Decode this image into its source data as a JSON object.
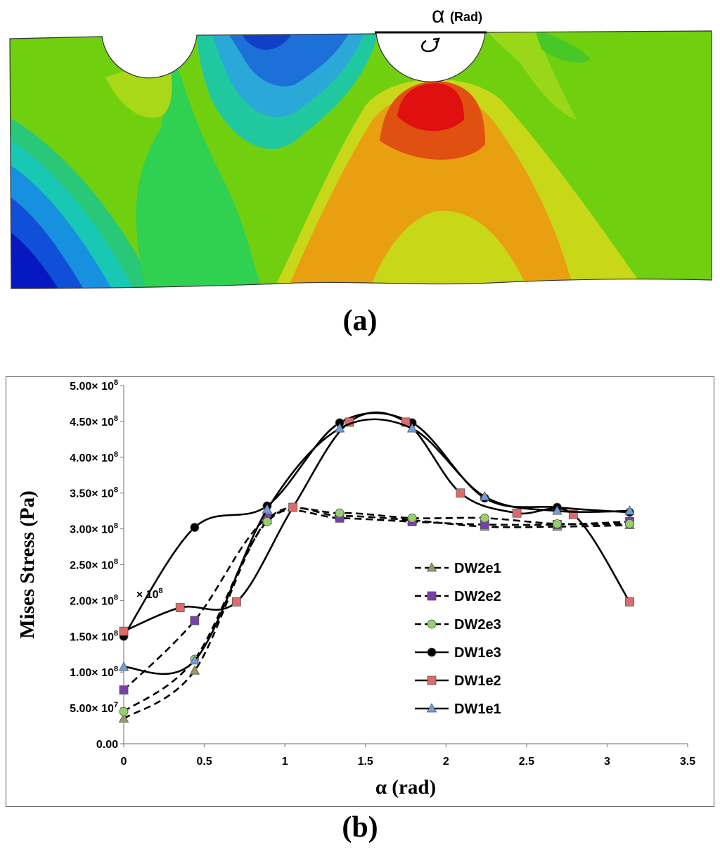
{
  "figure_a": {
    "angle_symbol": "α",
    "angle_unit": "(Rad)",
    "caption": "(a)"
  },
  "figure_b": {
    "caption": "(b)"
  },
  "colors": {
    "DW2e1": "#9a9a5a",
    "DW2e2": "#7a3fa8",
    "DW2e3": "#96d06a",
    "DW1e3": "#000000",
    "DW1e2": "#e06a6a",
    "DW1e1": "#6f9fe0"
  },
  "chart_data": {
    "type": "line",
    "title": "",
    "xlabel": "α (rad)",
    "ylabel": "Mises Stress (Pa)",
    "xlim": [
      0,
      3.5
    ],
    "ylim": [
      0,
      500000000
    ],
    "x_ticks": [
      0,
      0.5,
      1,
      1.5,
      2,
      2.5,
      3,
      3.5
    ],
    "x_tick_labels": [
      "0",
      "0.5",
      "1",
      "1.5",
      "2",
      "2.5",
      "3",
      "3.5"
    ],
    "y_ticks": [
      0,
      50000000,
      100000000,
      150000000,
      200000000,
      250000000,
      300000000,
      350000000,
      400000000,
      450000000,
      500000000
    ],
    "y_tick_labels": [
      {
        "mantissa": "0.00",
        "exp": ""
      },
      {
        "mantissa": "5.00× 10",
        "exp": "7"
      },
      {
        "mantissa": "1.00× 10",
        "exp": "8"
      },
      {
        "mantissa": "1.50× 10",
        "exp": "8"
      },
      {
        "mantissa": "2.00× 10",
        "exp": "8"
      },
      {
        "mantissa": "2.50× 10",
        "exp": "8"
      },
      {
        "mantissa": "3.00× 10",
        "exp": "8"
      },
      {
        "mantissa": "3.50× 10",
        "exp": "8"
      },
      {
        "mantissa": "4.00× 10",
        "exp": "8"
      },
      {
        "mantissa": "4.50× 10",
        "exp": "8"
      },
      {
        "mantissa": "5.00× 10",
        "exp": "8"
      }
    ],
    "annotation": {
      "mantissa": "× 10",
      "exp": "8",
      "x": 0.34,
      "y": 215000000
    },
    "legend_position": "right-center",
    "series": [
      {
        "name": "DW2e1",
        "line": "dashed",
        "marker": "triangle",
        "x": [
          0,
          0.44,
          0.89,
          1.34,
          1.79,
          2.24,
          2.69,
          3.14
        ],
        "y": [
          35000000,
          102000000,
          312000000,
          318000000,
          312000000,
          303000000,
          303000000,
          305000000
        ]
      },
      {
        "name": "DW2e2",
        "line": "dashed",
        "marker": "square",
        "x": [
          0,
          0.44,
          0.89,
          1.34,
          1.79,
          2.24,
          2.69,
          3.14
        ],
        "y": [
          75000000,
          172000000,
          315000000,
          315000000,
          310000000,
          306000000,
          306000000,
          310000000
        ]
      },
      {
        "name": "DW2e3",
        "line": "dashed",
        "marker": "circle",
        "x": [
          0,
          0.44,
          0.89,
          1.34,
          1.79,
          2.24,
          2.69,
          3.14
        ],
        "y": [
          45000000,
          118000000,
          310000000,
          322000000,
          315000000,
          315000000,
          307000000,
          307000000
        ]
      },
      {
        "name": "DW1e3",
        "line": "solid",
        "marker": "circle",
        "x": [
          0,
          0.44,
          0.89,
          1.34,
          1.79,
          2.24,
          2.69,
          3.14
        ],
        "y": [
          150000000,
          302000000,
          332000000,
          448000000,
          448000000,
          343000000,
          330000000,
          323000000
        ]
      },
      {
        "name": "DW1e2",
        "line": "solid",
        "marker": "square",
        "x": [
          0,
          0.35,
          0.7,
          1.05,
          1.4,
          1.75,
          2.09,
          2.44,
          2.79,
          3.14
        ],
        "y": [
          157000000,
          190000000,
          198000000,
          330000000,
          449000000,
          449000000,
          350000000,
          322000000,
          320000000,
          198000000
        ]
      },
      {
        "name": "DW1e1",
        "line": "solid",
        "marker": "triangle",
        "x": [
          0,
          0.44,
          0.89,
          1.34,
          1.79,
          2.24,
          2.69,
          3.14
        ],
        "y": [
          107000000,
          116000000,
          327000000,
          440000000,
          440000000,
          345000000,
          325000000,
          325000000
        ]
      }
    ]
  }
}
